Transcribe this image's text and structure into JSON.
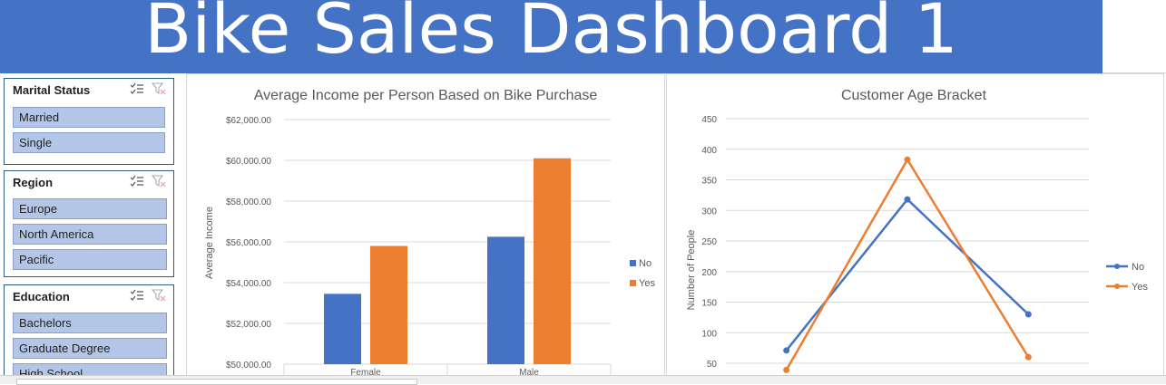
{
  "dashboard": {
    "title": "Bike Sales Dashboard 1"
  },
  "slicers": {
    "marital_status": {
      "title": "Marital Status",
      "items": [
        "Married",
        "Single"
      ]
    },
    "region": {
      "title": "Region",
      "items": [
        "Europe",
        "North America",
        "Pacific"
      ]
    },
    "education": {
      "title": "Education",
      "items": [
        "Bachelors",
        "Graduate Degree",
        "High School"
      ]
    }
  },
  "colors": {
    "banner": "#4472c4",
    "series_no": "#4472c4",
    "series_yes": "#ed7d31",
    "slicer_item": "#b4c6e7"
  },
  "chart_data": [
    {
      "type": "bar",
      "title": "Average Income per Person Based on Bike Purchase",
      "xlabel": "",
      "ylabel": "Average Income",
      "categories": [
        "Female",
        "Male"
      ],
      "series": [
        {
          "name": "No",
          "values": [
            53450,
            56250
          ]
        },
        {
          "name": "Yes",
          "values": [
            55800,
            60100
          ]
        }
      ],
      "ylim": [
        50000,
        62000
      ],
      "yticks": [
        "$50,000.00",
        "$52,000.00",
        "$54,000.00",
        "$56,000.00",
        "$58,000.00",
        "$60,000.00",
        "$62,000.00"
      ],
      "legend": "right",
      "grid": true
    },
    {
      "type": "line",
      "title": "Customer Age Bracket",
      "xlabel": "",
      "ylabel": "Number of People",
      "series": [
        {
          "name": "No",
          "values": [
            71,
            318,
            130
          ]
        },
        {
          "name": "Yes",
          "values": [
            39,
            383,
            60
          ]
        }
      ],
      "ylim": [
        50,
        450
      ],
      "yticks": [
        "50",
        "100",
        "150",
        "200",
        "250",
        "300",
        "350",
        "400",
        "450"
      ],
      "legend": "right",
      "grid": true
    }
  ]
}
